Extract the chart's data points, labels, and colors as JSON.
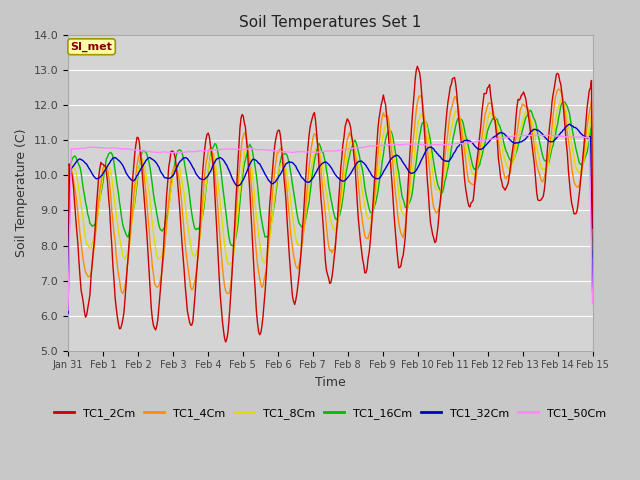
{
  "title": "Soil Temperatures Set 1",
  "xlabel": "Time",
  "ylabel": "Soil Temperature (C)",
  "ylim": [
    5.0,
    14.0
  ],
  "yticks": [
    5.0,
    6.0,
    7.0,
    8.0,
    9.0,
    10.0,
    11.0,
    12.0,
    13.0,
    14.0
  ],
  "xtick_labels": [
    "Jan 31",
    "Feb 1",
    "Feb 2",
    "Feb 3",
    "Feb 4",
    "Feb 5",
    "Feb 6",
    "Feb 7",
    "Feb 8",
    "Feb 9",
    "Feb 10",
    "Feb 11",
    "Feb 12",
    "Feb 13",
    "Feb 14",
    "Feb 15"
  ],
  "series_colors": {
    "TC1_2Cm": "#cc0000",
    "TC1_4Cm": "#ff8c00",
    "TC1_8Cm": "#dddd00",
    "TC1_16Cm": "#00bb00",
    "TC1_32Cm": "#0000cc",
    "TC1_50Cm": "#ff88ff"
  },
  "legend_label": "SI_met",
  "legend_box_facecolor": "#ffffaa",
  "legend_box_edgecolor": "#999900",
  "legend_text_color": "#880000",
  "fig_facecolor": "#c8c8c8",
  "ax_facecolor": "#d4d4d4",
  "grid_color": "#ffffff",
  "n_points": 480,
  "days": 15
}
